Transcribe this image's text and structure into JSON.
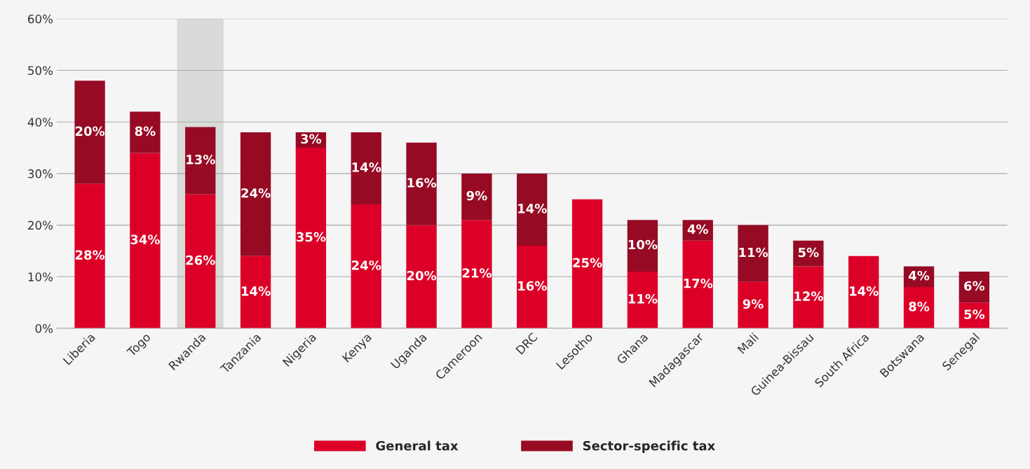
{
  "chart_data": {
    "type": "bar",
    "stacked": true,
    "categories": [
      "Liberia",
      "Togo",
      "Rwanda",
      "Tanzania",
      "Nigeria",
      "Kenya",
      "Uganda",
      "Cameroon",
      "DRC",
      "Lesotho",
      "Ghana",
      "Madagascar",
      "Mali",
      "Guinea-Bissau",
      "South Africa",
      "Botswana",
      "Senegal"
    ],
    "series": [
      {
        "name": "General tax",
        "color": "#dc0028",
        "values": [
          28,
          34,
          26,
          14,
          35,
          24,
          20,
          21,
          16,
          25,
          11,
          17,
          9,
          12,
          14,
          8,
          5
        ],
        "value_labels": [
          "28%",
          "34%",
          "26%",
          "14%",
          "35%",
          "24%",
          "20%",
          "21%",
          "16%",
          "25%",
          "11%",
          "17%",
          "9%",
          "12%",
          "14%",
          "8%",
          "5%"
        ]
      },
      {
        "name": "Sector-specific tax",
        "color": "#960a24",
        "values": [
          20,
          8,
          13,
          24,
          3,
          14,
          16,
          9,
          14,
          null,
          10,
          4,
          11,
          5,
          null,
          4,
          6
        ],
        "value_labels": [
          "20%",
          "8%",
          "13%",
          "24%",
          "3%",
          "14%",
          "16%",
          "9%",
          "14%",
          null,
          "10%",
          "4%",
          "11%",
          "5%",
          null,
          "4%",
          "6%"
        ]
      }
    ],
    "ylim": [
      0,
      60
    ],
    "yticks": [
      {
        "value": 0,
        "label": "0%"
      },
      {
        "value": 10,
        "label": "10%"
      },
      {
        "value": 20,
        "label": "20%"
      },
      {
        "value": 30,
        "label": "30%"
      },
      {
        "value": 40,
        "label": "40%"
      },
      {
        "value": 50,
        "label": "50%"
      },
      {
        "value": 60,
        "label": "60%"
      }
    ],
    "grid": "y",
    "legend": "bottom",
    "bands": [
      {
        "axis": "x",
        "from": "Rwanda",
        "to": "Rwanda",
        "color": "#d9dbd9"
      }
    ]
  }
}
